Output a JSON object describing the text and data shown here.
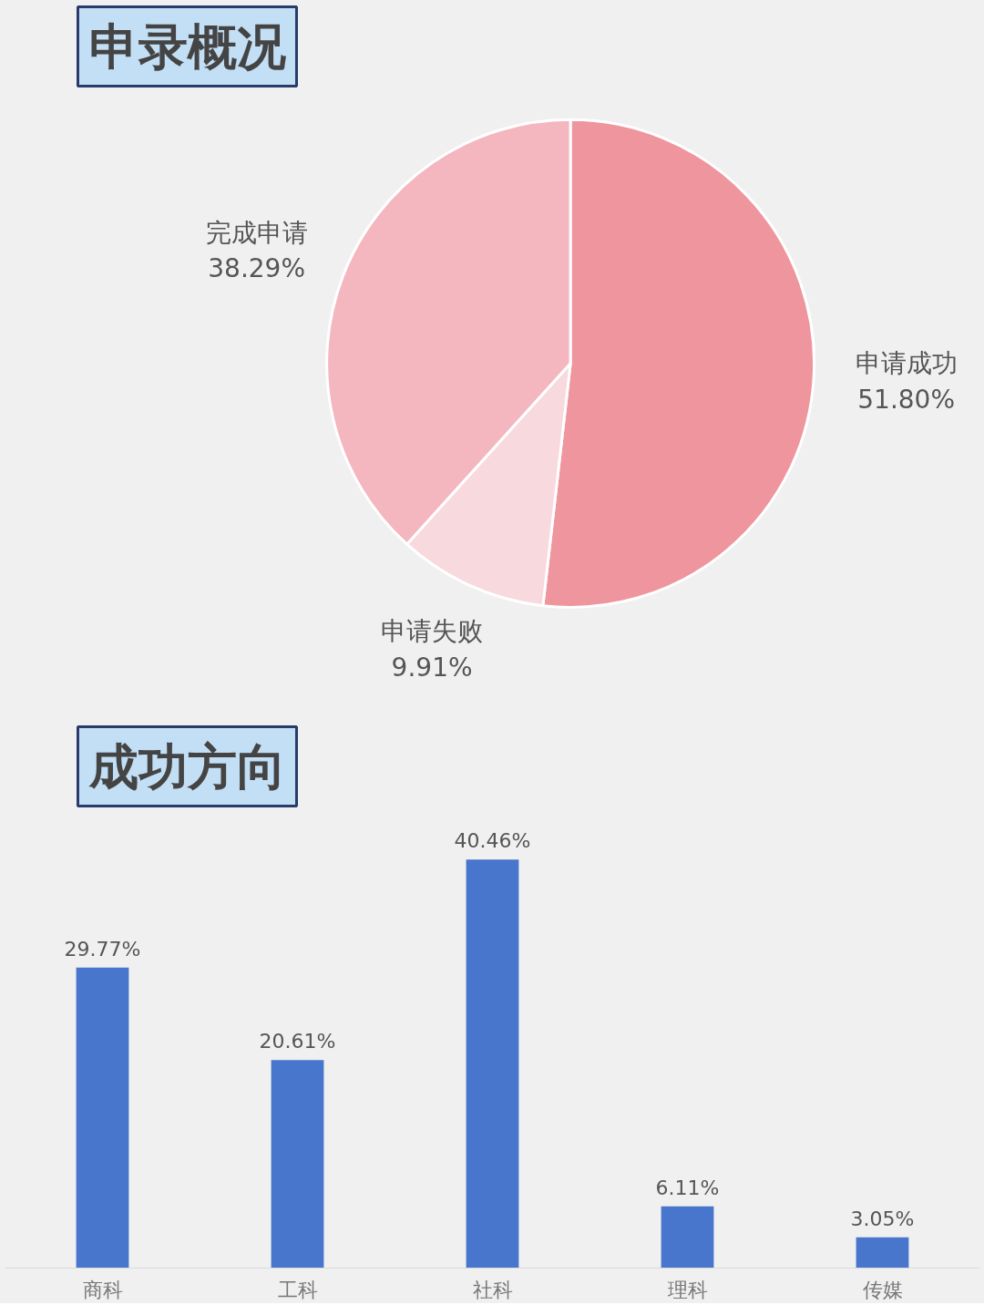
{
  "chart_data": [
    {
      "type": "pie",
      "title": "申录概况",
      "categories": [
        "申请成功",
        "申请失败",
        "完成申请"
      ],
      "values": [
        51.8,
        9.91,
        38.29
      ],
      "colors": [
        "#ef959d",
        "#f8d9de",
        "#f4b6bf"
      ],
      "value_labels": [
        "51.80%",
        "9.91%",
        "38.29%"
      ]
    },
    {
      "type": "bar",
      "title": "成功方向",
      "categories": [
        "商科",
        "工科",
        "社科",
        "理科",
        "传媒"
      ],
      "values": [
        29.77,
        20.61,
        40.46,
        6.11,
        3.05
      ],
      "color": "#4776cc",
      "value_labels": [
        "29.77%",
        "20.61%",
        "40.46%",
        "6.11%",
        "3.05%"
      ]
    }
  ]
}
